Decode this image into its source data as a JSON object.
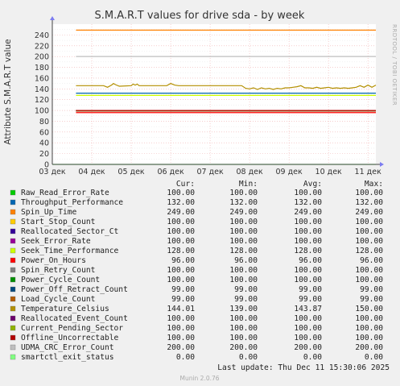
{
  "page": {
    "title": "S.M.A.R.T values for drive sda - by week",
    "side_label": "RRDTOOL / TOBI OETIKER",
    "footer_last_update": "Last update: Thu Dec 11 15:30:06 2025",
    "footer_version": "Munin 2.0.76"
  },
  "legend": {
    "headers": [
      "Cur:",
      "Min:",
      "Avg:",
      "Max:"
    ],
    "rows": [
      {
        "name": "Raw_Read_Error_Rate",
        "color": "#00cc00",
        "cur": "100.00",
        "min": "100.00",
        "avg": "100.00",
        "max": "100.00"
      },
      {
        "name": "Throughput_Performance",
        "color": "#0066b3",
        "cur": "132.00",
        "min": "132.00",
        "avg": "132.00",
        "max": "132.00"
      },
      {
        "name": "Spin_Up_Time",
        "color": "#ff8000",
        "cur": "249.00",
        "min": "249.00",
        "avg": "249.00",
        "max": "249.00"
      },
      {
        "name": "Start_Stop_Count",
        "color": "#ffcc00",
        "cur": "100.00",
        "min": "100.00",
        "avg": "100.00",
        "max": "100.00"
      },
      {
        "name": "Reallocated_Sector_Ct",
        "color": "#330099",
        "cur": "100.00",
        "min": "100.00",
        "avg": "100.00",
        "max": "100.00"
      },
      {
        "name": "Seek_Error_Rate",
        "color": "#990099",
        "cur": "100.00",
        "min": "100.00",
        "avg": "100.00",
        "max": "100.00"
      },
      {
        "name": "Seek_Time_Performance",
        "color": "#ccff00",
        "cur": "128.00",
        "min": "128.00",
        "avg": "128.00",
        "max": "128.00"
      },
      {
        "name": "Power_On_Hours",
        "color": "#ff0000",
        "cur": "96.00",
        "min": "96.00",
        "avg": "96.00",
        "max": "96.00"
      },
      {
        "name": "Spin_Retry_Count",
        "color": "#808080",
        "cur": "100.00",
        "min": "100.00",
        "avg": "100.00",
        "max": "100.00"
      },
      {
        "name": "Power_Cycle_Count",
        "color": "#008f00",
        "cur": "100.00",
        "min": "100.00",
        "avg": "100.00",
        "max": "100.00"
      },
      {
        "name": "Power_Off_Retract_Count",
        "color": "#00487d",
        "cur": "99.00",
        "min": "99.00",
        "avg": "99.00",
        "max": "99.00"
      },
      {
        "name": "Load_Cycle_Count",
        "color": "#b35a00",
        "cur": "99.00",
        "min": "99.00",
        "avg": "99.00",
        "max": "99.00"
      },
      {
        "name": "Temperature_Celsius",
        "color": "#b38f00",
        "cur": "144.01",
        "min": "139.00",
        "avg": "143.87",
        "max": "150.00"
      },
      {
        "name": "Reallocated_Event_Count",
        "color": "#6b006b",
        "cur": "100.00",
        "min": "100.00",
        "avg": "100.00",
        "max": "100.00"
      },
      {
        "name": "Current_Pending_Sector",
        "color": "#8fb300",
        "cur": "100.00",
        "min": "100.00",
        "avg": "100.00",
        "max": "100.00"
      },
      {
        "name": "Offline_Uncorrectable",
        "color": "#b30000",
        "cur": "100.00",
        "min": "100.00",
        "avg": "100.00",
        "max": "100.00"
      },
      {
        "name": "UDMA_CRC_Error_Count",
        "color": "#bebebe",
        "cur": "200.00",
        "min": "200.00",
        "avg": "200.00",
        "max": "200.00"
      },
      {
        "name": "smartctl_exit_status",
        "color": "#80ff80",
        "cur": "0.00",
        "min": "0.00",
        "avg": "0.00",
        "max": "0.00"
      }
    ]
  },
  "chart_data": {
    "type": "line",
    "title": "S.M.A.R.T values for drive sda - by week",
    "ylabel": "Attribute S.M.A.R.T value",
    "xlabel": "",
    "ylim": [
      0,
      260
    ],
    "yticks": [
      0,
      20,
      40,
      60,
      80,
      100,
      120,
      140,
      160,
      180,
      200,
      220,
      240
    ],
    "xlim": [
      0,
      8.2
    ],
    "xticks": [
      0,
      1,
      2,
      3,
      4,
      5,
      6,
      7,
      8
    ],
    "xtick_labels": [
      "03 дек",
      "04 дек",
      "05 дек",
      "06 дек",
      "07 дек",
      "08 дек",
      "09 дек",
      "10 дек",
      "11 дек"
    ],
    "grid": true,
    "constant_series": [
      {
        "name": "Raw_Read_Error_Rate",
        "value": 100
      },
      {
        "name": "Throughput_Performance",
        "value": 132
      },
      {
        "name": "Spin_Up_Time",
        "value": 249
      },
      {
        "name": "Start_Stop_Count",
        "value": 100
      },
      {
        "name": "Reallocated_Sector_Ct",
        "value": 100
      },
      {
        "name": "Seek_Error_Rate",
        "value": 100
      },
      {
        "name": "Seek_Time_Performance",
        "value": 128
      },
      {
        "name": "Power_On_Hours",
        "value": 96
      },
      {
        "name": "Spin_Retry_Count",
        "value": 100
      },
      {
        "name": "Power_Cycle_Count",
        "value": 100
      },
      {
        "name": "Power_Off_Retract_Count",
        "value": 99
      },
      {
        "name": "Load_Cycle_Count",
        "value": 99
      },
      {
        "name": "Reallocated_Event_Count",
        "value": 100
      },
      {
        "name": "Current_Pending_Sector",
        "value": 100
      },
      {
        "name": "Offline_Uncorrectable",
        "value": 100
      },
      {
        "name": "UDMA_CRC_Error_Count",
        "value": 200
      },
      {
        "name": "smartctl_exit_status",
        "value": 0
      }
    ],
    "series": [
      {
        "name": "Temperature_Celsius",
        "x": [
          0.6,
          1.0,
          1.3,
          1.4,
          1.5,
          1.55,
          1.6,
          1.7,
          2.0,
          2.05,
          2.1,
          2.15,
          2.2,
          2.3,
          2.6,
          2.8,
          2.9,
          3.0,
          3.1,
          3.2,
          3.5,
          4.0,
          4.5,
          4.8,
          4.9,
          5.0,
          5.1,
          5.2,
          5.3,
          5.4,
          5.5,
          5.6,
          5.7,
          5.8,
          5.9,
          6.0,
          6.1,
          6.2,
          6.3,
          6.4,
          6.5,
          6.6,
          6.7,
          6.8,
          6.9,
          7.0,
          7.1,
          7.2,
          7.3,
          7.4,
          7.5,
          7.6,
          7.7,
          7.8,
          7.9,
          8.0,
          8.1,
          8.2
        ],
        "y": [
          146,
          146,
          146,
          143,
          147,
          150,
          148,
          145,
          146,
          149,
          147,
          149,
          146,
          146,
          146,
          146,
          146,
          150,
          147,
          146,
          146,
          146,
          146,
          146,
          141,
          140,
          142,
          139,
          142,
          140,
          141,
          139,
          141,
          140,
          142,
          142,
          143,
          144,
          146,
          142,
          142,
          141,
          143,
          141,
          142,
          143,
          141,
          142,
          141,
          142,
          141,
          142,
          143,
          146,
          143,
          147,
          143,
          147
        ]
      }
    ]
  }
}
